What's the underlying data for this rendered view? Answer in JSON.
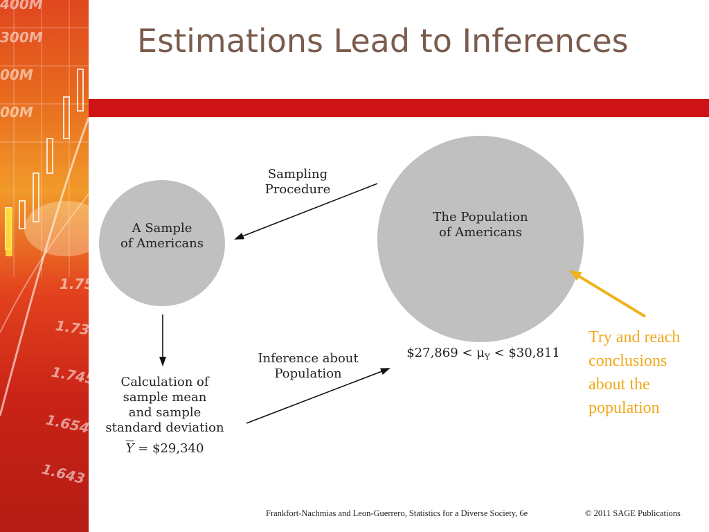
{
  "slide": {
    "title": "Estimations Lead to Inferences"
  },
  "diagram": {
    "sample_circle_label": "A Sample\nof Americans",
    "population_circle_label": "The Population\nof Americans",
    "sampling_label": "Sampling\nProcedure",
    "inference_label": "Inference about\nPopulation",
    "calculation_label": "Calculation of\nsample mean\nand sample\nstandard deviation",
    "sample_mean_symbol": "Y",
    "sample_mean_value": "= $29,340",
    "interval_left": "$27,869 < μ",
    "interval_subscript": "Y",
    "interval_right": " < $30,811",
    "circle_color": "#c0c0c0"
  },
  "annotation": {
    "text": "Try and reach conclusions about the population",
    "color": "#f0a81c"
  },
  "footer": {
    "citation": "Frankfort-Nachmias and Leon-Guerrero, Statistics for a Diverse Society, 6e",
    "copyright": "© 2011 SAGE Publications"
  },
  "background_strip": {
    "numbers": [
      "400M",
      "300M",
      "00M",
      "00M",
      "1.75",
      "1.734",
      "1.745",
      "1.654",
      "1.643"
    ]
  },
  "colors": {
    "title": "#7a5c4e",
    "accent_bar": "#cf1417"
  }
}
